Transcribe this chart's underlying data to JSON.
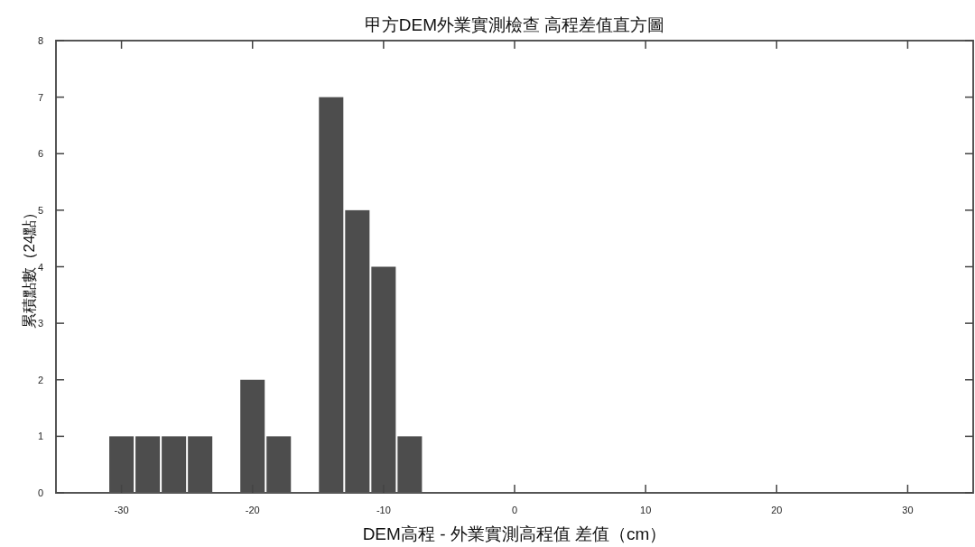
{
  "chart_data": {
    "type": "histogram",
    "title": "甲方DEM外業實測檢查 高程差值直方圖",
    "xlabel": "DEM高程 - 外業實測高程值 差值（cm）",
    "ylabel": "累積點數（24點）",
    "bins": [
      -31,
      -29,
      -27,
      -25,
      -23,
      -21,
      -19,
      -17,
      -15,
      -13,
      -11,
      -9,
      -7
    ],
    "values": [
      1,
      1,
      1,
      1,
      0,
      2,
      1,
      0,
      7,
      5,
      4,
      1
    ],
    "color": "#4d4d4d",
    "xlim": [
      -35,
      35
    ],
    "xticks": [
      -30,
      -20,
      -10,
      0,
      10,
      20,
      30
    ],
    "ylim": [
      0,
      8
    ],
    "yticks": [
      0,
      1,
      2,
      3,
      4,
      5,
      6,
      7,
      8
    ]
  }
}
